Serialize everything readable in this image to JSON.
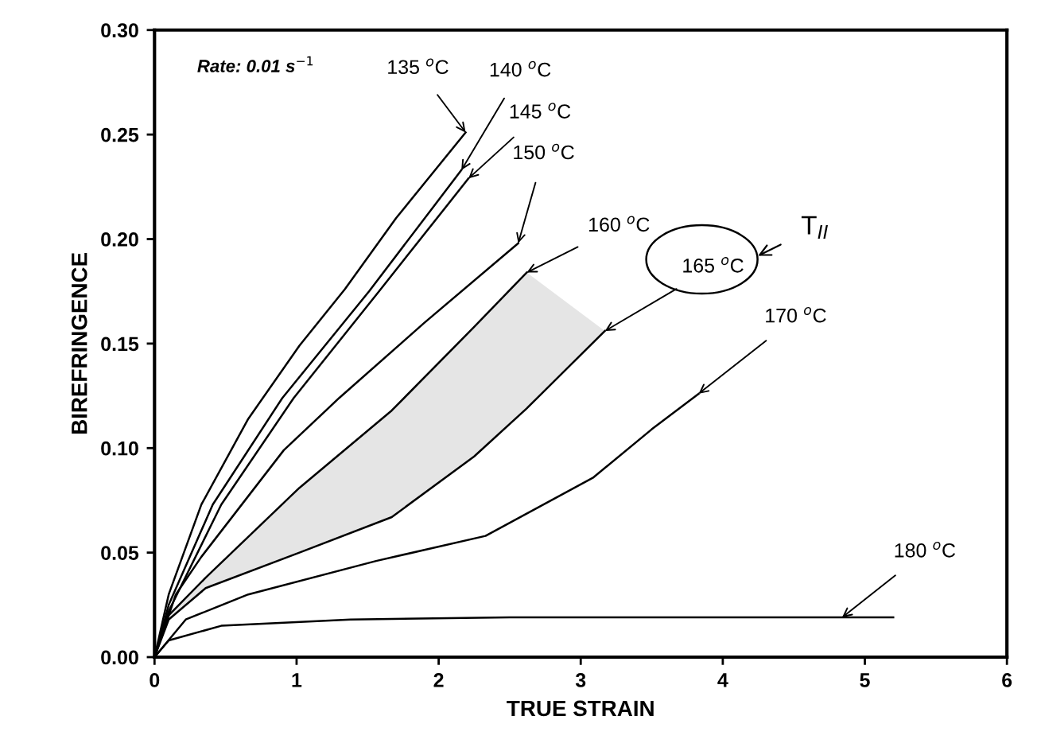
{
  "chart_data": {
    "type": "line",
    "xlabel": "TRUE STRAIN",
    "ylabel": "BIREFRINGENCE",
    "xlim": [
      0,
      6
    ],
    "xticks": [
      0,
      1,
      2,
      3,
      4,
      5,
      6
    ],
    "ylim": [
      0,
      0.3
    ],
    "yticks": [
      {
        "value": 0,
        "label": "0.00"
      },
      {
        "value": 0.05,
        "label": "0.05"
      },
      {
        "value": 0.1,
        "label": "0.10"
      },
      {
        "value": 0.15,
        "label": "0.15"
      },
      {
        "value": 0.2,
        "label": "0.20"
      },
      {
        "value": 0.25,
        "label": "0.25"
      },
      {
        "value": 0.3,
        "label": "0.30"
      }
    ],
    "grid": false,
    "legend": false,
    "marker": "none",
    "line_style": "solid",
    "series": [
      {
        "color": "#000000",
        "x": [
          0,
          0.1,
          0.33,
          0.66,
          1.02,
          1.34,
          1.7,
          2.19
        ],
        "values": [
          0,
          0.03,
          0.073,
          0.114,
          0.149,
          0.176,
          0.21,
          0.251
        ]
      },
      {
        "color": "#000000",
        "x": [
          0,
          0.1,
          0.41,
          0.9,
          1.51,
          2.16
        ],
        "values": [
          0,
          0.025,
          0.073,
          0.124,
          0.175,
          0.233
        ]
      },
      {
        "color": "#000000",
        "x": [
          0,
          0.1,
          0.47,
          0.98,
          1.58,
          2.21
        ],
        "values": [
          0,
          0.022,
          0.073,
          0.124,
          0.175,
          0.229
        ]
      },
      {
        "color": "#000000",
        "x": [
          0,
          0.15,
          0.33,
          0.91,
          1.3,
          1.9,
          2.56
        ],
        "values": [
          0,
          0.03,
          0.048,
          0.099,
          0.124,
          0.16,
          0.198
        ]
      },
      {
        "color": "#000000",
        "x": [
          0,
          0.1,
          0.36,
          1.02,
          1.67,
          2.25,
          2.62
        ],
        "values": [
          0,
          0.02,
          0.038,
          0.081,
          0.118,
          0.158,
          0.184
        ]
      },
      {
        "color": "#000000",
        "x": [
          0,
          0.1,
          0.36,
          1.02,
          1.67,
          2.25,
          2.62,
          3.17
        ],
        "values": [
          0,
          0.018,
          0.033,
          0.05,
          0.067,
          0.096,
          0.119,
          0.156
        ],
        "lower": [
          0,
          0.018,
          0.033,
          0.05,
          0.067,
          0.096,
          0.119,
          0.156
        ],
        "upper": [
          0,
          0.02,
          0.038,
          0.081,
          0.118,
          0.158,
          0.184,
          0.156
        ]
      },
      {
        "color": "#000000",
        "x": [
          0,
          0.22,
          0.66,
          1.56,
          2.33,
          3.09,
          3.5,
          3.83
        ],
        "values": [
          0,
          0.018,
          0.03,
          0.046,
          0.058,
          0.086,
          0.109,
          0.126
        ]
      },
      {
        "color": "#000000",
        "x": [
          0,
          0.1,
          0.47,
          1.38,
          2.5,
          3.5,
          5.2
        ],
        "values": [
          0,
          0.008,
          0.015,
          0.018,
          0.019,
          0.019,
          0.019
        ]
      }
    ],
    "annotations": [
      "Rate: 0.01 s$^{−1}$",
      {
        "text": "135 $^{o}$C",
        "x": 2.19,
        "y": 0.251
      },
      {
        "text": "140 $^{o}$C",
        "x": 2.16,
        "y": 0.233
      },
      {
        "text": "145 $^{o}$C",
        "x": 2.21,
        "y": 0.229
      },
      {
        "text": "150 $^{o}$C",
        "x": 2.56,
        "y": 0.198
      },
      {
        "text": "160 $^{o}$C",
        "x": 2.62,
        "y": 0.184
      },
      {
        "text": "165 $^{o}$C",
        "x": 3.17,
        "y": 0.156
      },
      {
        "text": "170 $^{o}$C",
        "x": 3.83,
        "y": 0.126
      },
      {
        "text": "180 $^{o}$C",
        "x": 4.84,
        "y": 0.019
      },
      "T$_{II}$"
    ]
  }
}
